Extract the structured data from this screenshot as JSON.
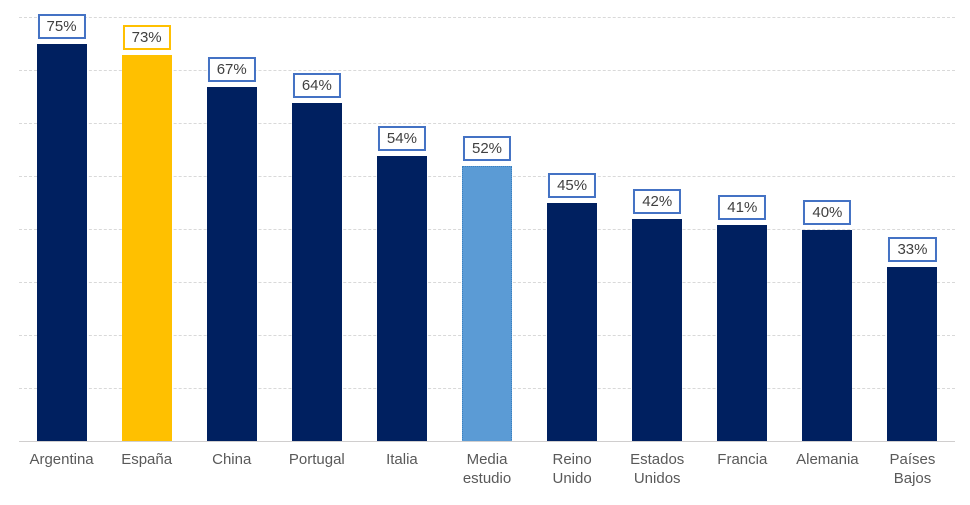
{
  "chart_data": {
    "type": "bar",
    "title": "",
    "xlabel": "",
    "ylabel": "",
    "ylim": [
      0,
      80
    ],
    "grid": true,
    "gridline_interval": 10,
    "legend": "none",
    "categories": [
      "Argentina",
      "España",
      "China",
      "Portugal",
      "Italia",
      "Media estudio",
      "Reino Unido",
      "Estados Unidos",
      "Francia",
      "Alemania",
      "Países Bajos"
    ],
    "values": [
      75,
      73,
      67,
      64,
      54,
      52,
      45,
      42,
      41,
      40,
      33
    ],
    "bars": [
      {
        "category": "Argentina",
        "axis_label": "Argentina",
        "value": 75,
        "label": "75%",
        "bar_color": "navy",
        "label_border": "blue"
      },
      {
        "category": "España",
        "axis_label": "España",
        "value": 73,
        "label": "73%",
        "bar_color": "gold",
        "label_border": "gold"
      },
      {
        "category": "China",
        "axis_label": "China",
        "value": 67,
        "label": "67%",
        "bar_color": "navy",
        "label_border": "blue"
      },
      {
        "category": "Portugal",
        "axis_label": "Portugal",
        "value": 64,
        "label": "64%",
        "bar_color": "navy",
        "label_border": "blue"
      },
      {
        "category": "Italia",
        "axis_label": "Italia",
        "value": 54,
        "label": "54%",
        "bar_color": "navy",
        "label_border": "blue"
      },
      {
        "category": "Media estudio",
        "axis_label": "Media\nestudio",
        "value": 52,
        "label": "52%",
        "bar_color": "lightblue",
        "label_border": "blue"
      },
      {
        "category": "Reino Unido",
        "axis_label": "Reino\nUnido",
        "value": 45,
        "label": "45%",
        "bar_color": "navy",
        "label_border": "blue"
      },
      {
        "category": "Estados Unidos",
        "axis_label": "Estados\nUnidos",
        "value": 42,
        "label": "42%",
        "bar_color": "navy",
        "label_border": "blue"
      },
      {
        "category": "Francia",
        "axis_label": "Francia",
        "value": 41,
        "label": "41%",
        "bar_color": "navy",
        "label_border": "blue"
      },
      {
        "category": "Alemania",
        "axis_label": "Alemania",
        "value": 40,
        "label": "40%",
        "bar_color": "navy",
        "label_border": "blue"
      },
      {
        "category": "Países Bajos",
        "axis_label": "Países\nBajos",
        "value": 33,
        "label": "33%",
        "bar_color": "navy",
        "label_border": "blue"
      }
    ]
  },
  "colors": {
    "navy": "#002060",
    "gold": "#ffc000",
    "lightblue": "#5b9bd5",
    "blue": "#4472c4",
    "gridline": "#d9d9d9",
    "axis_line": "#d0cece",
    "value_text": "#404040",
    "category_text": "#595959",
    "background": "#ffffff"
  }
}
